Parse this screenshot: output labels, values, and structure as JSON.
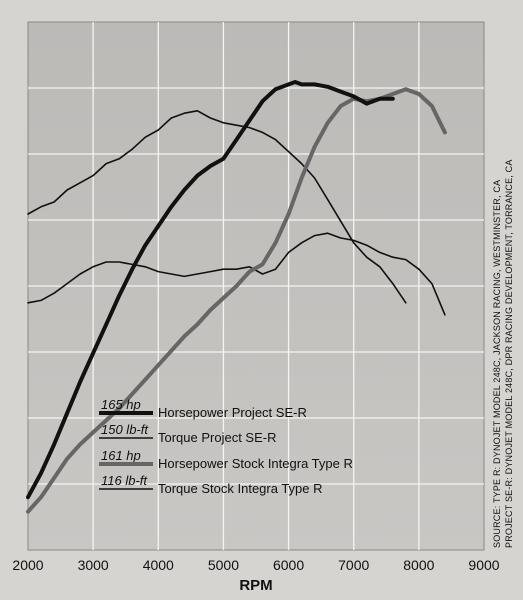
{
  "chart_data": {
    "type": "line",
    "title": "",
    "xlabel": "RPM",
    "ylabel": "",
    "xlim": [
      2000,
      9000
    ],
    "x_ticks": [
      2000,
      3000,
      4000,
      5000,
      6000,
      7000,
      8000,
      9000
    ],
    "grid": true,
    "legend_position": "bottom-left",
    "series": [
      {
        "name": "Horsepower Project SE-R",
        "legend_value": "165 hp",
        "color": "#111111",
        "style": "thick",
        "points": [
          [
            2000,
            22
          ],
          [
            2200,
            32
          ],
          [
            2400,
            44
          ],
          [
            2600,
            57
          ],
          [
            2800,
            70
          ],
          [
            3000,
            82
          ],
          [
            3200,
            94
          ],
          [
            3400,
            106
          ],
          [
            3600,
            117
          ],
          [
            3800,
            127
          ],
          [
            4000,
            135
          ],
          [
            4200,
            143
          ],
          [
            4400,
            150
          ],
          [
            4600,
            156
          ],
          [
            4800,
            160
          ],
          [
            5000,
            163
          ],
          [
            5200,
            171
          ],
          [
            5400,
            179
          ],
          [
            5600,
            187
          ],
          [
            5800,
            192
          ],
          [
            6000,
            194
          ],
          [
            6100,
            195
          ],
          [
            6200,
            194
          ],
          [
            6400,
            194
          ],
          [
            6600,
            193
          ],
          [
            6800,
            191
          ],
          [
            7000,
            189
          ],
          [
            7200,
            186
          ],
          [
            7400,
            188
          ],
          [
            7600,
            188
          ]
        ]
      },
      {
        "name": "Torque Project SE-R",
        "legend_value": "150 lb-ft",
        "color": "#111111",
        "style": "thin",
        "points": [
          [
            2000,
            140
          ],
          [
            2200,
            143
          ],
          [
            2400,
            145
          ],
          [
            2600,
            150
          ],
          [
            2800,
            153
          ],
          [
            3000,
            156
          ],
          [
            3200,
            161
          ],
          [
            3400,
            163
          ],
          [
            3600,
            167
          ],
          [
            3800,
            172
          ],
          [
            4000,
            175
          ],
          [
            4200,
            180
          ],
          [
            4400,
            182
          ],
          [
            4600,
            183
          ],
          [
            4800,
            180
          ],
          [
            5000,
            178
          ],
          [
            5200,
            177
          ],
          [
            5400,
            176
          ],
          [
            5600,
            174
          ],
          [
            5800,
            171
          ],
          [
            6000,
            166
          ],
          [
            6200,
            161
          ],
          [
            6400,
            155
          ],
          [
            6600,
            146
          ],
          [
            6800,
            137
          ],
          [
            7000,
            128
          ],
          [
            7200,
            122
          ],
          [
            7400,
            118
          ],
          [
            7600,
            111
          ],
          [
            7800,
            103
          ]
        ]
      },
      {
        "name": "Horsepower Stock Integra Type R",
        "legend_value": "161 hp",
        "color": "#666666",
        "style": "thick",
        "points": [
          [
            2000,
            16
          ],
          [
            2200,
            22
          ],
          [
            2400,
            30
          ],
          [
            2600,
            38
          ],
          [
            2800,
            44
          ],
          [
            3000,
            49
          ],
          [
            3200,
            54
          ],
          [
            3400,
            59
          ],
          [
            3600,
            65
          ],
          [
            3800,
            71
          ],
          [
            4000,
            77
          ],
          [
            4200,
            83
          ],
          [
            4400,
            89
          ],
          [
            4600,
            94
          ],
          [
            4800,
            100
          ],
          [
            5000,
            105
          ],
          [
            5200,
            110
          ],
          [
            5400,
            116
          ],
          [
            5600,
            119
          ],
          [
            5800,
            128
          ],
          [
            6000,
            140
          ],
          [
            6200,
            155
          ],
          [
            6400,
            168
          ],
          [
            6600,
            178
          ],
          [
            6800,
            185
          ],
          [
            7000,
            188
          ],
          [
            7200,
            187
          ],
          [
            7400,
            188
          ],
          [
            7600,
            190
          ],
          [
            7800,
            192
          ],
          [
            8000,
            190
          ],
          [
            8200,
            185
          ],
          [
            8400,
            174
          ]
        ]
      },
      {
        "name": "Torque Stock Integra Type R",
        "legend_value": "116 lb-ft",
        "color": "#111111",
        "style": "thin",
        "points": [
          [
            2000,
            103
          ],
          [
            2200,
            104
          ],
          [
            2400,
            107
          ],
          [
            2600,
            111
          ],
          [
            2800,
            115
          ],
          [
            3000,
            118
          ],
          [
            3200,
            120
          ],
          [
            3400,
            120
          ],
          [
            3600,
            119
          ],
          [
            3800,
            118
          ],
          [
            4000,
            116
          ],
          [
            4200,
            115
          ],
          [
            4400,
            114
          ],
          [
            4600,
            115
          ],
          [
            4800,
            116
          ],
          [
            5000,
            117
          ],
          [
            5200,
            117
          ],
          [
            5400,
            118
          ],
          [
            5600,
            115
          ],
          [
            5800,
            117
          ],
          [
            6000,
            124
          ],
          [
            6200,
            128
          ],
          [
            6400,
            131
          ],
          [
            6600,
            132
          ],
          [
            6800,
            130
          ],
          [
            7000,
            129
          ],
          [
            7200,
            127
          ],
          [
            7400,
            124
          ],
          [
            7600,
            122
          ],
          [
            7800,
            121
          ],
          [
            8000,
            117
          ],
          [
            8200,
            111
          ],
          [
            8400,
            98
          ]
        ]
      }
    ],
    "source_lines": [
      "SOURCE:  TYPE R: DYNOJET MODEL 248C, JACKSON RACING, WESTMINSTER, CA",
      "PROJECT SE-R: DYNOJET MODEL 248C, DPR RACING DEVELOPMENT, TORRANCE, CA"
    ]
  }
}
